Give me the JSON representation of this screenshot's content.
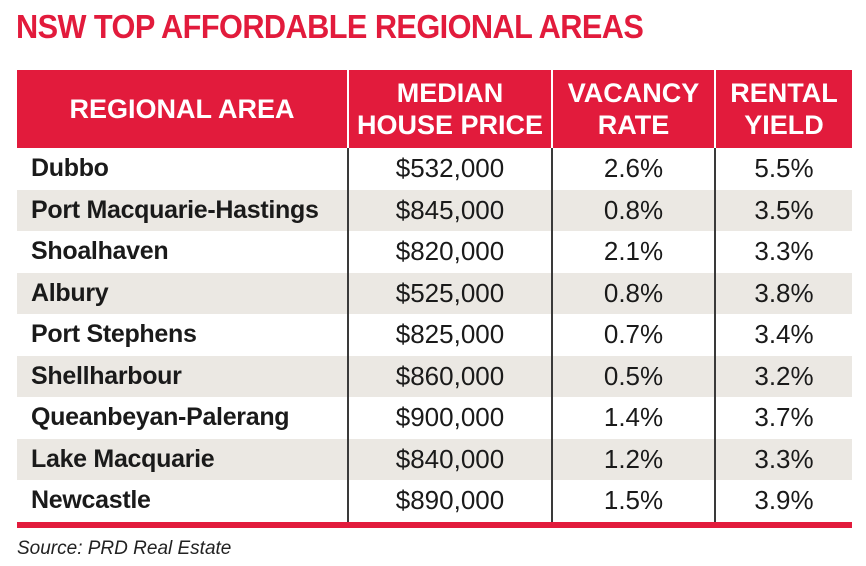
{
  "title": "NSW TOP AFFORDABLE REGIONAL AREAS",
  "colors": {
    "accent": "#e21b3c",
    "row_stripe": "#ebe8e3"
  },
  "table": {
    "headers": [
      "REGIONAL AREA",
      "MEDIAN\nHOUSE PRICE",
      "VACANCY\nRATE",
      "RENTAL\nYIELD"
    ],
    "rows": [
      [
        "Dubbo",
        "$532,000",
        "2.6%",
        "5.5%"
      ],
      [
        "Port Macquarie-Hastings",
        "$845,000",
        "0.8%",
        "3.5%"
      ],
      [
        "Shoalhaven",
        "$820,000",
        "2.1%",
        "3.3%"
      ],
      [
        "Albury",
        "$525,000",
        "0.8%",
        "3.8%"
      ],
      [
        "Port Stephens",
        "$825,000",
        "0.7%",
        "3.4%"
      ],
      [
        "Shellharbour",
        "$860,000",
        "0.5%",
        "3.2%"
      ],
      [
        "Queanbeyan-Palerang",
        "$900,000",
        "1.4%",
        "3.7%"
      ],
      [
        "Lake Macquarie",
        "$840,000",
        "1.2%",
        "3.3%"
      ],
      [
        "Newcastle",
        "$890,000",
        "1.5%",
        "3.9%"
      ]
    ]
  },
  "source": "Source: PRD Real Estate"
}
